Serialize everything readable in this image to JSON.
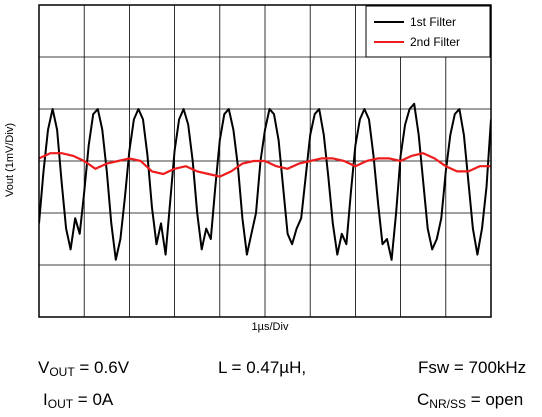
{
  "chart_data": {
    "type": "line",
    "xlabel": "1µs/Div",
    "ylabel": "Vout (1mV/Div)",
    "xlim": [
      0,
      10
    ],
    "ylim": [
      -3,
      3
    ],
    "grid": true,
    "legend_position": "top-right",
    "series": [
      {
        "name": "1st Filter",
        "color": "#000000",
        "x": [
          0.0,
          0.1,
          0.2,
          0.3,
          0.4,
          0.5,
          0.6,
          0.7,
          0.8,
          0.9,
          1.0,
          1.1,
          1.2,
          1.3,
          1.4,
          1.5,
          1.6,
          1.7,
          1.8,
          1.9,
          2.0,
          2.1,
          2.2,
          2.3,
          2.4,
          2.5,
          2.6,
          2.7,
          2.8,
          2.9,
          3.0,
          3.1,
          3.2,
          3.3,
          3.4,
          3.5,
          3.6,
          3.7,
          3.8,
          3.9,
          4.0,
          4.1,
          4.2,
          4.3,
          4.4,
          4.5,
          4.6,
          4.7,
          4.8,
          4.9,
          5.0,
          5.1,
          5.2,
          5.3,
          5.4,
          5.5,
          5.6,
          5.7,
          5.8,
          5.9,
          6.0,
          6.1,
          6.2,
          6.3,
          6.4,
          6.5,
          6.6,
          6.7,
          6.8,
          6.9,
          7.0,
          7.1,
          7.2,
          7.3,
          7.4,
          7.5,
          7.6,
          7.7,
          7.8,
          7.9,
          8.0,
          8.1,
          8.2,
          8.3,
          8.4,
          8.5,
          8.6,
          8.7,
          8.8,
          8.9,
          9.0,
          9.1,
          9.2,
          9.3,
          9.4,
          9.5,
          9.6,
          9.7,
          9.8,
          9.9,
          10.0
        ],
        "y": [
          -1.2,
          -0.2,
          0.6,
          1.0,
          0.6,
          -0.4,
          -1.3,
          -1.7,
          -1.1,
          -1.4,
          -0.6,
          0.3,
          0.9,
          1.0,
          0.6,
          -0.2,
          -1.2,
          -1.9,
          -1.5,
          -0.7,
          0.2,
          0.8,
          1.0,
          0.8,
          0.1,
          -0.9,
          -1.6,
          -1.2,
          -1.8,
          -0.8,
          0.2,
          0.8,
          1.0,
          0.7,
          0.0,
          -1.0,
          -1.7,
          -1.3,
          -1.5,
          -0.5,
          0.4,
          0.9,
          1.0,
          0.6,
          -0.1,
          -1.1,
          -1.8,
          -1.4,
          -1.0,
          0.0,
          0.6,
          1.0,
          0.9,
          0.4,
          -0.5,
          -1.4,
          -1.6,
          -1.3,
          -1.1,
          -0.3,
          0.5,
          0.9,
          1.0,
          0.5,
          -0.3,
          -1.2,
          -1.8,
          -1.4,
          -1.6,
          -0.6,
          0.3,
          0.8,
          1.0,
          0.8,
          0.1,
          -0.8,
          -1.6,
          -1.5,
          -1.9,
          -1.0,
          0.1,
          0.7,
          1.0,
          1.1,
          0.5,
          -0.4,
          -1.3,
          -1.7,
          -1.5,
          -1.1,
          -0.2,
          0.5,
          0.9,
          1.0,
          0.5,
          -0.4,
          -1.3,
          -1.8,
          -1.3,
          -0.5,
          0.8
        ]
      },
      {
        "name": "2nd Filter",
        "color": "#ee1c1c",
        "x": [
          0.0,
          0.25,
          0.5,
          0.75,
          1.0,
          1.25,
          1.5,
          1.75,
          2.0,
          2.25,
          2.5,
          2.75,
          3.0,
          3.25,
          3.5,
          3.75,
          4.0,
          4.25,
          4.5,
          4.75,
          5.0,
          5.25,
          5.5,
          5.75,
          6.0,
          6.25,
          6.5,
          6.75,
          7.0,
          7.25,
          7.5,
          7.75,
          8.0,
          8.25,
          8.5,
          8.75,
          9.0,
          9.25,
          9.5,
          9.75,
          10.0
        ],
        "y": [
          0.05,
          0.15,
          0.15,
          0.1,
          0.0,
          -0.15,
          -0.05,
          0.0,
          0.05,
          0.0,
          -0.2,
          -0.25,
          -0.15,
          -0.1,
          -0.2,
          -0.25,
          -0.3,
          -0.2,
          -0.05,
          0.0,
          0.0,
          -0.1,
          -0.15,
          -0.05,
          0.0,
          0.05,
          0.05,
          0.0,
          -0.1,
          0.0,
          0.05,
          0.05,
          0.0,
          0.1,
          0.15,
          0.05,
          -0.1,
          -0.2,
          -0.2,
          -0.1,
          -0.1
        ]
      }
    ]
  },
  "captions": {
    "vout": {
      "main": "V",
      "sub": "OUT",
      "rest": " = 0.6V"
    },
    "iout": {
      "main": "I",
      "sub": "OUT",
      "rest": " = 0A"
    },
    "inductor": "L = 0.47µH,",
    "fsw": "Fsw = 700kHz",
    "cnr": {
      "main": "C",
      "sub": "NR/SS",
      "rest": " = open"
    }
  }
}
